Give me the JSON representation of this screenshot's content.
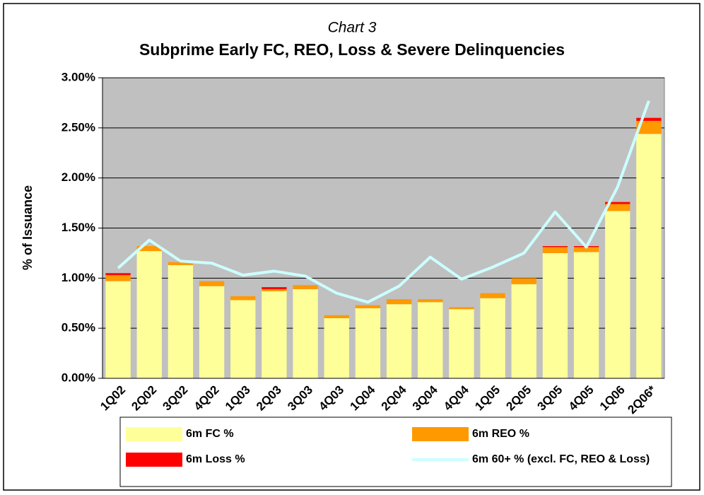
{
  "chart_data": {
    "type": "bar",
    "stacked": true,
    "subtitle": "Chart 3",
    "title": "Subprime Early FC, REO, Loss & Severe Delinquencies",
    "y_label": "% of Issuance",
    "categories": [
      "1Q02",
      "2Q02",
      "3Q02",
      "4Q02",
      "1Q03",
      "2Q03",
      "3Q03",
      "4Q03",
      "1Q04",
      "2Q04",
      "3Q04",
      "4Q04",
      "1Q05",
      "2Q05",
      "3Q05",
      "4Q05",
      "1Q06",
      "2Q06*"
    ],
    "series": [
      {
        "name": "6m FC %",
        "type": "bar",
        "color": "#ffff99",
        "values": [
          0.97,
          1.27,
          1.13,
          0.92,
          0.78,
          0.87,
          0.89,
          0.6,
          0.7,
          0.74,
          0.76,
          0.69,
          0.8,
          0.94,
          1.25,
          1.26,
          1.67,
          2.44
        ]
      },
      {
        "name": "6m REO %",
        "type": "bar",
        "color": "#ff9900",
        "values": [
          0.06,
          0.05,
          0.03,
          0.05,
          0.04,
          0.02,
          0.04,
          0.03,
          0.03,
          0.05,
          0.03,
          0.02,
          0.05,
          0.06,
          0.06,
          0.05,
          0.07,
          0.13
        ]
      },
      {
        "name": "6m Loss %",
        "type": "bar",
        "color": "#ff0000",
        "values": [
          0.02,
          0,
          0,
          0,
          0,
          0.02,
          0,
          0,
          0,
          0,
          0,
          0,
          0,
          0,
          0.01,
          0.01,
          0.02,
          0.03
        ]
      },
      {
        "name": "6m 60+ % (excl. FC, REO & Loss)",
        "type": "line",
        "color": "#ccffff",
        "values": [
          1.1,
          1.38,
          1.17,
          1.15,
          1.03,
          1.07,
          1.02,
          0.85,
          0.76,
          0.92,
          1.21,
          0.99,
          1.11,
          1.25,
          1.66,
          1.31,
          1.91,
          2.77
        ]
      }
    ],
    "ylim": [
      0,
      3
    ],
    "yticks": [
      {
        "value": 0,
        "label": "0.00%"
      },
      {
        "value": 0.5,
        "label": "0.50%"
      },
      {
        "value": 1,
        "label": "1.00%"
      },
      {
        "value": 1.5,
        "label": "1.50%"
      },
      {
        "value": 2,
        "label": "2.00%"
      },
      {
        "value": 2.5,
        "label": "2.50%"
      },
      {
        "value": 3,
        "label": "3.00%"
      }
    ],
    "grid": true,
    "legend": "bottom"
  }
}
